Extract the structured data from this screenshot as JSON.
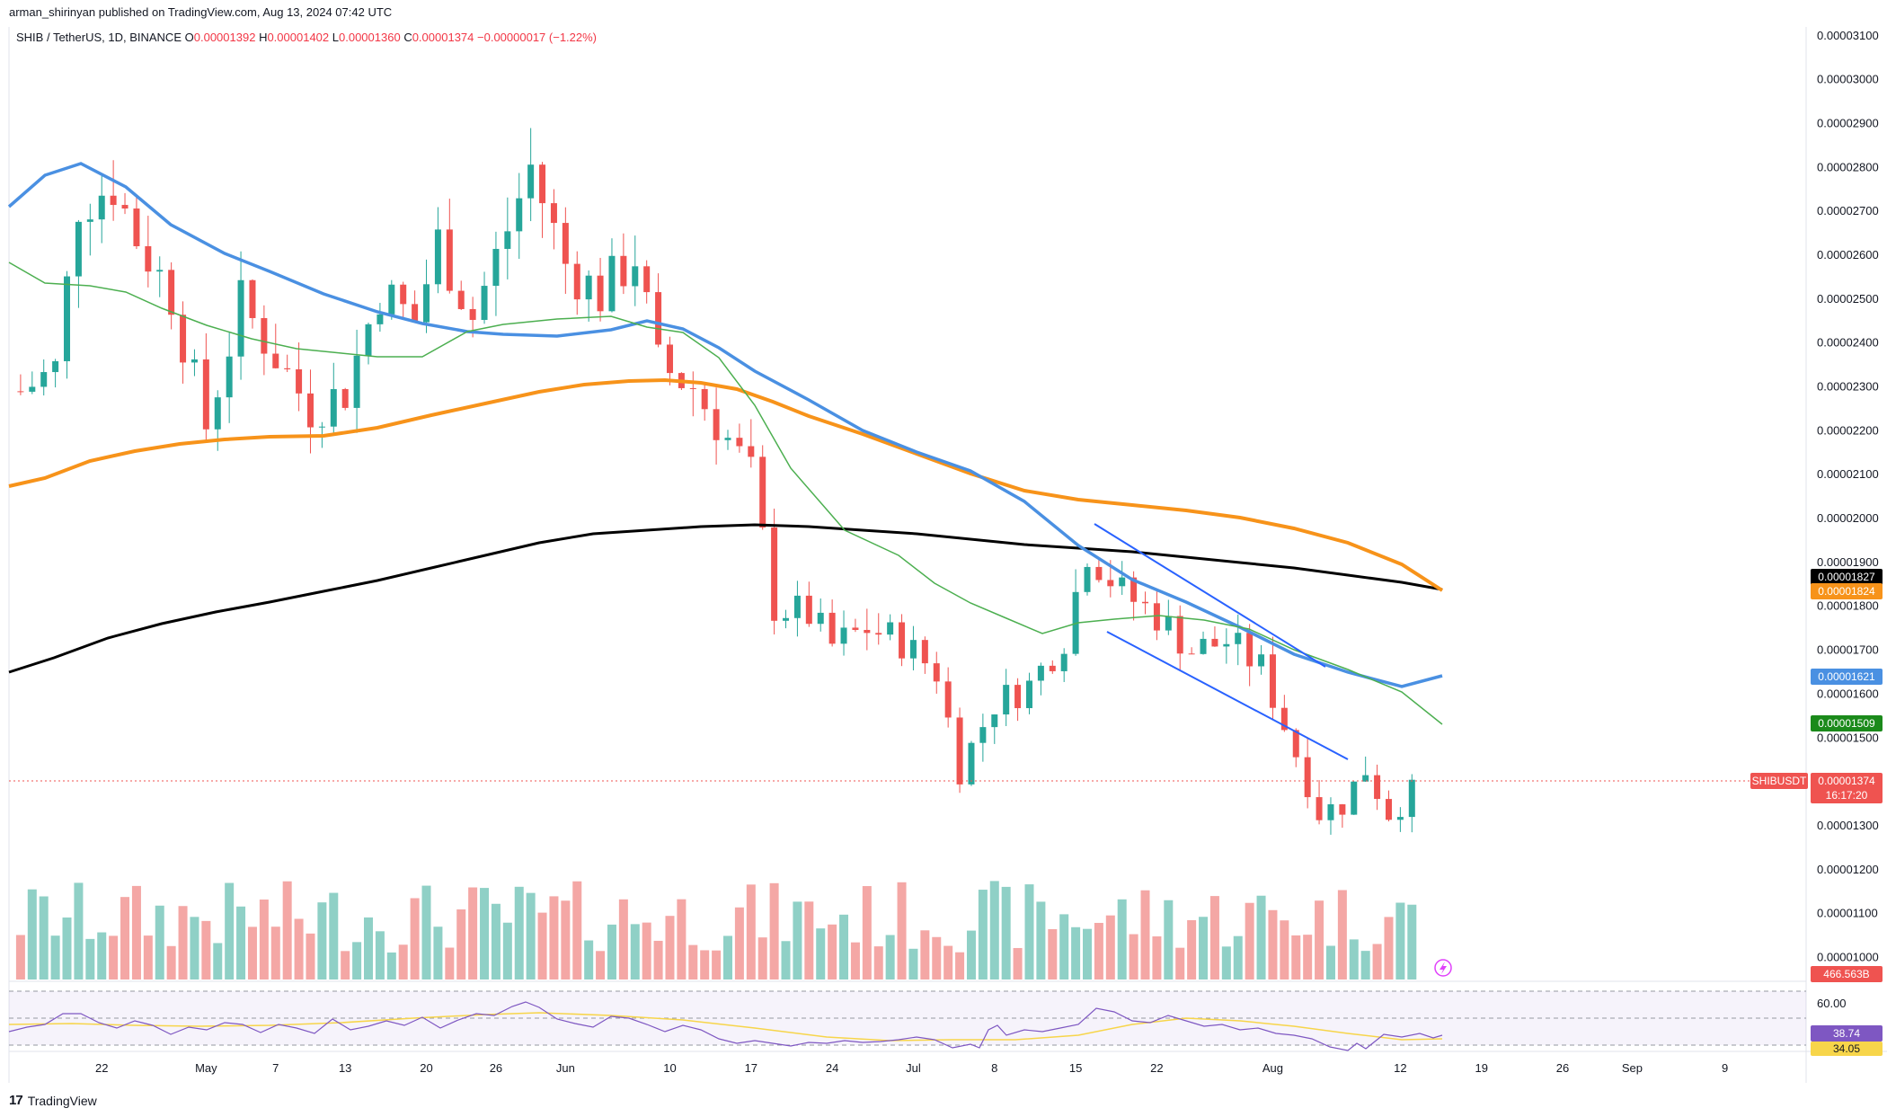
{
  "header": {
    "author": "arman_shirinyan",
    "published_text": "published on TradingView.com, Aug 13, 2024 07:42 UTC"
  },
  "symbol": {
    "title": "SHIB / TetherUS, 1D, BINANCE",
    "o_key": "O",
    "o": "0.00001392",
    "h_key": "H",
    "h": "0.00001402",
    "l_key": "L",
    "l": "0.00001360",
    "c_key": "C",
    "c": "0.00001374",
    "change": "−0.00000017 (−1.22%)"
  },
  "colors": {
    "up": "#26a69a",
    "down": "#ef5350",
    "up_vol": "#8fd0c6",
    "down_vol": "#f4a7a5",
    "ema_fast": "#4caf50",
    "ema_mid": "#4a90e2",
    "ema_slow": "#f7931a",
    "ema_long": "#000000",
    "channel": "#2962ff",
    "rsi": "#7e57c2",
    "rsi_ma": "#f7d54a"
  },
  "chart_data": {
    "type": "candlestick",
    "symbol": "SHIB / TetherUS",
    "interval": "1D",
    "exchange": "BINANCE",
    "y_unit": "USDT",
    "y_ticks": [
      "0.00003100",
      "0.00003000",
      "0.00002900",
      "0.00002800",
      "0.00002700",
      "0.00002600",
      "0.00002500",
      "0.00002400",
      "0.00002300",
      "0.00002200",
      "0.00002100",
      "0.00002000",
      "0.00001900",
      "0.00001800",
      "0.00001700",
      "0.00001600",
      "0.00001500",
      "0.00001400",
      "0.00001300",
      "0.00001200",
      "0.00001100",
      "0.00001000"
    ],
    "ylim": [
      9.6e-06,
      3.12e-05
    ],
    "x_ticks": [
      {
        "label": "22",
        "date": "2024-04-22"
      },
      {
        "label": "May",
        "date": "2024-05-01"
      },
      {
        "label": "7",
        "date": "2024-05-07"
      },
      {
        "label": "13",
        "date": "2024-05-13"
      },
      {
        "label": "20",
        "date": "2024-05-20"
      },
      {
        "label": "26",
        "date": "2024-05-26"
      },
      {
        "label": "Jun",
        "date": "2024-06-01"
      },
      {
        "label": "10",
        "date": "2024-06-10"
      },
      {
        "label": "17",
        "date": "2024-06-17"
      },
      {
        "label": "24",
        "date": "2024-06-24"
      },
      {
        "label": "Jul",
        "date": "2024-07-01"
      },
      {
        "label": "8",
        "date": "2024-07-08"
      },
      {
        "label": "15",
        "date": "2024-07-15"
      },
      {
        "label": "22",
        "date": "2024-07-22"
      },
      {
        "label": "Aug",
        "date": "2024-08-01"
      },
      {
        "label": "12",
        "date": "2024-08-12"
      },
      {
        "label": "19",
        "date": "2024-08-19"
      },
      {
        "label": "26",
        "date": "2024-08-26"
      },
      {
        "label": "Sep",
        "date": "2024-09-01"
      },
      {
        "label": "9",
        "date": "2024-09-09"
      }
    ],
    "xlim": [
      "2024-04-14",
      "2024-09-16"
    ],
    "price_closes_approx": [
      {
        "date": "2024-04-15",
        "c": 2.29e-05
      },
      {
        "date": "2024-04-18",
        "c": 2.34e-05
      },
      {
        "date": "2024-04-20",
        "c": 2.72e-05
      },
      {
        "date": "2024-04-23",
        "c": 2.76e-05
      },
      {
        "date": "2024-04-25",
        "c": 2.64e-05
      },
      {
        "date": "2024-04-28",
        "c": 2.51e-05
      },
      {
        "date": "2024-05-01",
        "c": 2.21e-05
      },
      {
        "date": "2024-05-04",
        "c": 2.49e-05
      },
      {
        "date": "2024-05-07",
        "c": 2.37e-05
      },
      {
        "date": "2024-05-10",
        "c": 2.25e-05
      },
      {
        "date": "2024-05-13",
        "c": 2.29e-05
      },
      {
        "date": "2024-05-16",
        "c": 2.52e-05
      },
      {
        "date": "2024-05-19",
        "c": 2.45e-05
      },
      {
        "date": "2024-05-21",
        "c": 2.63e-05
      },
      {
        "date": "2024-05-24",
        "c": 2.46e-05
      },
      {
        "date": "2024-05-27",
        "c": 2.66e-05
      },
      {
        "date": "2024-05-29",
        "c": 2.8e-05
      },
      {
        "date": "2024-06-01",
        "c": 2.58e-05
      },
      {
        "date": "2024-06-04",
        "c": 2.51e-05
      },
      {
        "date": "2024-06-07",
        "c": 2.6e-05
      },
      {
        "date": "2024-06-09",
        "c": 2.35e-05
      },
      {
        "date": "2024-06-12",
        "c": 2.3e-05
      },
      {
        "date": "2024-06-14",
        "c": 2.22e-05
      },
      {
        "date": "2024-06-17",
        "c": 2.1e-05
      },
      {
        "date": "2024-06-19",
        "c": 1.8e-05
      },
      {
        "date": "2024-06-22",
        "c": 1.78e-05
      },
      {
        "date": "2024-06-24",
        "c": 1.71e-05
      },
      {
        "date": "2024-06-27",
        "c": 1.75e-05
      },
      {
        "date": "2024-06-30",
        "c": 1.72e-05
      },
      {
        "date": "2024-07-03",
        "c": 1.65e-05
      },
      {
        "date": "2024-07-05",
        "c": 1.43e-05
      },
      {
        "date": "2024-07-08",
        "c": 1.58e-05
      },
      {
        "date": "2024-07-11",
        "c": 1.62e-05
      },
      {
        "date": "2024-07-14",
        "c": 1.73e-05
      },
      {
        "date": "2024-07-16",
        "c": 1.93e-05
      },
      {
        "date": "2024-07-19",
        "c": 1.83e-05
      },
      {
        "date": "2024-07-22",
        "c": 1.78e-05
      },
      {
        "date": "2024-07-25",
        "c": 1.7e-05
      },
      {
        "date": "2024-07-28",
        "c": 1.72e-05
      },
      {
        "date": "2024-07-31",
        "c": 1.66e-05
      },
      {
        "date": "2024-08-02",
        "c": 1.53e-05
      },
      {
        "date": "2024-08-04",
        "c": 1.4e-05
      },
      {
        "date": "2024-08-05",
        "c": 1.33e-05
      },
      {
        "date": "2024-08-07",
        "c": 1.35e-05
      },
      {
        "date": "2024-08-09",
        "c": 1.43e-05
      },
      {
        "date": "2024-08-11",
        "c": 1.33e-05
      },
      {
        "date": "2024-08-13",
        "c": 1.374e-05
      }
    ],
    "moving_averages_last": {
      "ema_long_black": "0.00001827",
      "ema_slow_orange": "0.00001824",
      "ema_mid_blue": "0.00001621",
      "ema_fast_green": "0.00001509"
    },
    "last_price": {
      "label": "SHIBUSDT",
      "value": "0.00001374",
      "countdown": "16:17:20"
    },
    "volume_last": "466.563B",
    "rsi": {
      "ticks": [
        "60.00",
        "34.05"
      ],
      "value": "38.74",
      "ma": "34.05"
    }
  }
}
